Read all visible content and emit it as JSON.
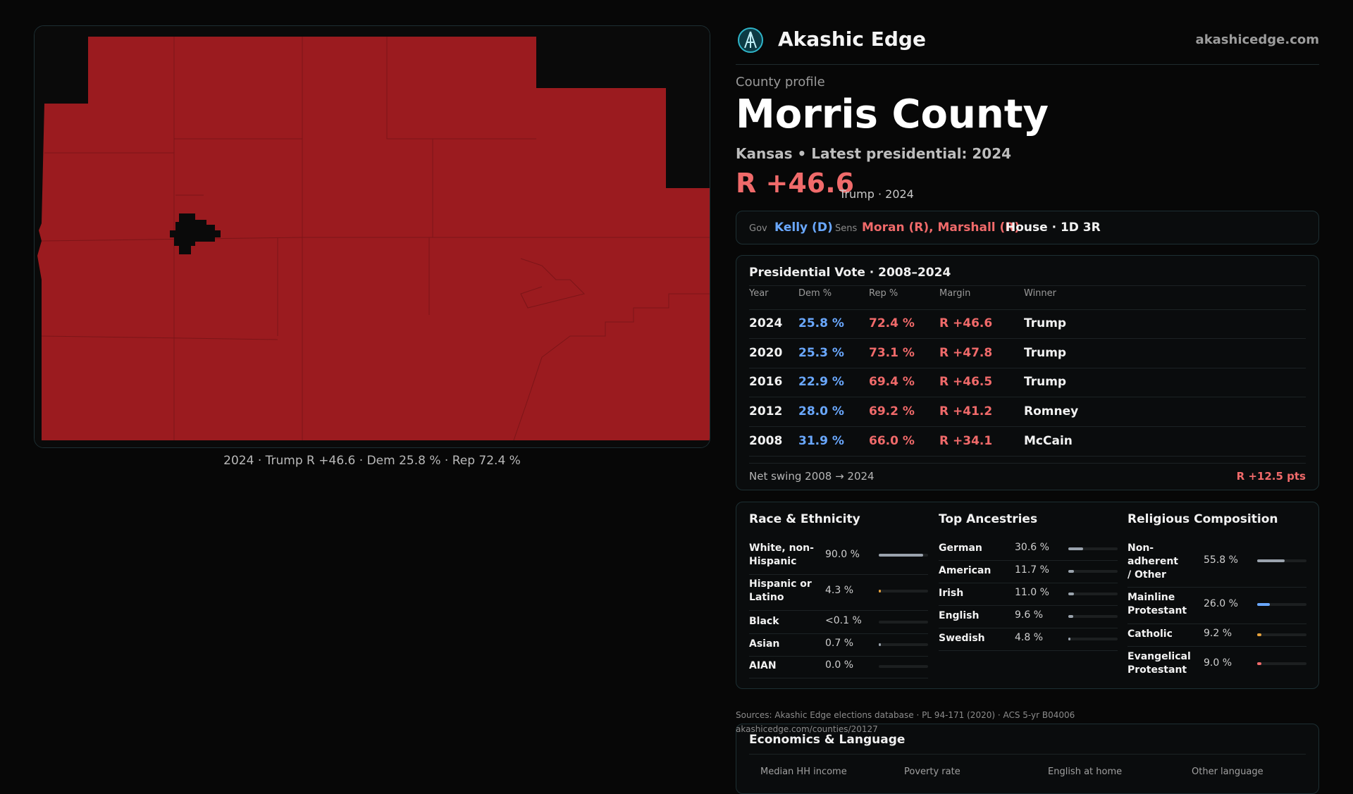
{
  "caption": "2024 · Trump R +46.6 · Dem 25.8 % · Rep 72.4 %",
  "header": {
    "brand": "Akashic Edge",
    "site": "akashicedge.com"
  },
  "profile": {
    "kicker": "County profile",
    "county": "Morris County",
    "sub": "Kansas • Latest presidential: 2024",
    "margin": "R +46.6",
    "margin_sub": "Trump · 2024"
  },
  "reps": {
    "gov_label": "Gov",
    "gov": "Kelly (D)",
    "sens_label": "Sens",
    "sens": "Moran (R), Marshall (R)",
    "house": "House · 1D 3R"
  },
  "presidential": {
    "title": "Presidential Vote · 2008–2024",
    "headers": [
      "Year",
      "Dem %",
      "Rep %",
      "Margin",
      "Winner"
    ],
    "rows": [
      {
        "year": "2024",
        "dem": "25.8 %",
        "rep": "72.4 %",
        "margin": "R +46.6",
        "winner": "Trump"
      },
      {
        "year": "2020",
        "dem": "25.3 %",
        "rep": "73.1 %",
        "margin": "R +47.8",
        "winner": "Trump"
      },
      {
        "year": "2016",
        "dem": "22.9 %",
        "rep": "69.4 %",
        "margin": "R +46.5",
        "winner": "Trump"
      },
      {
        "year": "2012",
        "dem": "28.0 %",
        "rep": "69.2 %",
        "margin": "R +41.2",
        "winner": "Romney"
      },
      {
        "year": "2008",
        "dem": "31.9 %",
        "rep": "66.0 %",
        "margin": "R +34.1",
        "winner": "McCain"
      }
    ],
    "swing_label": "Net swing 2008 → 2024",
    "swing_value": "R +12.5 pts"
  },
  "race": {
    "title": "Race & Ethnicity",
    "items": [
      {
        "name": "White, non-Hispanic",
        "value": "90.0 %",
        "fraction": 0.9,
        "color": "#9aa3ad"
      },
      {
        "name": "Hispanic or Latino",
        "value": "4.3 %",
        "fraction": 0.043,
        "color": "#e6a23c"
      },
      {
        "name": "Black",
        "value": "<0.1 %",
        "fraction": 0.0,
        "color": "#9aa3ad"
      },
      {
        "name": "Asian",
        "value": "0.7 %",
        "fraction": 0.007,
        "color": "#9aa3ad"
      },
      {
        "name": "AIAN",
        "value": "0.0 %",
        "fraction": 0.0,
        "color": "#9aa3ad"
      }
    ]
  },
  "ancestry": {
    "title": "Top Ancestries",
    "items": [
      {
        "name": "German",
        "value": "30.6 %",
        "fraction": 0.306,
        "color": "#9aa3ad"
      },
      {
        "name": "American",
        "value": "11.7 %",
        "fraction": 0.117,
        "color": "#9aa3ad"
      },
      {
        "name": "Irish",
        "value": "11.0 %",
        "fraction": 0.11,
        "color": "#9aa3ad"
      },
      {
        "name": "English",
        "value": "9.6 %",
        "fraction": 0.096,
        "color": "#9aa3ad"
      },
      {
        "name": "Swedish",
        "value": "4.8 %",
        "fraction": 0.048,
        "color": "#9aa3ad"
      }
    ]
  },
  "religion": {
    "title": "Religious Composition",
    "items": [
      {
        "name": "Non-adherent / Other",
        "value": "55.8 %",
        "fraction": 0.558,
        "color": "#9aa3ad"
      },
      {
        "name": "Mainline Protestant",
        "value": "26.0 %",
        "fraction": 0.26,
        "color": "#6aa8ff"
      },
      {
        "name": "Catholic",
        "value": "9.2 %",
        "fraction": 0.092,
        "color": "#e6a23c"
      },
      {
        "name": "Evangelical Protestant",
        "value": "9.0 %",
        "fraction": 0.09,
        "color": "#f06a6a"
      }
    ]
  },
  "economics": {
    "title": "Economics & Language",
    "headers": [
      "Median HH income",
      "Poverty rate",
      "English at home",
      "Other language"
    ]
  },
  "sources": {
    "line1": "Sources: Akashic Edge elections database · PL 94-171 (2020) · ACS 5-yr B04006",
    "line2": "akashicedge.com/counties/20127"
  },
  "colors": {
    "rep": "#9b1b1f",
    "dem": "#6aa8ff",
    "accent": "#f06a6a"
  }
}
